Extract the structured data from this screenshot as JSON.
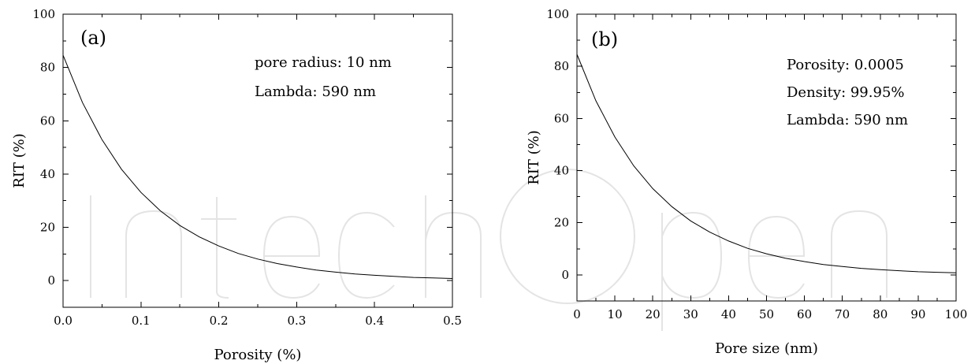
{
  "chart_data": [
    {
      "type": "line",
      "panel_label": "(a)",
      "xlabel": "Porosity (%)",
      "ylabel": "RIT (%)",
      "xlim": [
        0,
        0.5
      ],
      "ylim": [
        -10,
        100
      ],
      "xticks": [
        0.0,
        0.1,
        0.2,
        0.3,
        0.4,
        0.5
      ],
      "xtick_labels": [
        "0.0",
        "0.1",
        "0.2",
        "0.3",
        "0.4",
        "0.5"
      ],
      "yticks": [
        0,
        20,
        40,
        60,
        80,
        100
      ],
      "ytick_labels": [
        "0",
        "20",
        "40",
        "60",
        "80",
        "100"
      ],
      "annotations": [
        "pore radius: 10 nm",
        "Lambda: 590 nm"
      ],
      "series": [
        {
          "x": [
            0.0,
            0.025,
            0.05,
            0.075,
            0.1,
            0.125,
            0.15,
            0.175,
            0.2,
            0.225,
            0.25,
            0.275,
            0.3,
            0.325,
            0.35,
            0.375,
            0.4,
            0.425,
            0.45,
            0.475,
            0.5
          ],
          "y": [
            84.6,
            66.8,
            52.9,
            41.8,
            33.1,
            26.2,
            20.7,
            16.4,
            13.0,
            10.2,
            8.1,
            6.4,
            5.1,
            4.0,
            3.2,
            2.5,
            2.0,
            1.6,
            1.2,
            1.0,
            0.8
          ]
        }
      ]
    },
    {
      "type": "line",
      "panel_label": "(b)",
      "xlabel": "Pore size (nm)",
      "ylabel": "RIT (%)",
      "xlim": [
        0,
        100
      ],
      "ylim": [
        -10,
        100
      ],
      "xticks": [
        0,
        10,
        20,
        30,
        40,
        50,
        60,
        70,
        80,
        90,
        100
      ],
      "xtick_labels": [
        "0",
        "10",
        "20",
        "30",
        "40",
        "50",
        "60",
        "70",
        "80",
        "90",
        "100"
      ],
      "yticks": [
        0,
        20,
        40,
        60,
        80,
        100
      ],
      "ytick_labels": [
        "0",
        "20",
        "40",
        "60",
        "80",
        "100"
      ],
      "annotations": [
        "Porosity: 0.0005",
        "Density: 99.95%",
        "Lambda: 590 nm"
      ],
      "series": [
        {
          "x": [
            0,
            5,
            10,
            15,
            20,
            25,
            30,
            35,
            40,
            45,
            50,
            55,
            60,
            65,
            70,
            75,
            80,
            85,
            90,
            95,
            100
          ],
          "y": [
            84.6,
            66.8,
            52.9,
            41.8,
            33.1,
            26.2,
            20.7,
            16.4,
            13.0,
            10.2,
            8.1,
            6.4,
            5.1,
            4.0,
            3.2,
            2.5,
            2.0,
            1.6,
            1.2,
            1.0,
            0.8
          ]
        }
      ]
    }
  ]
}
